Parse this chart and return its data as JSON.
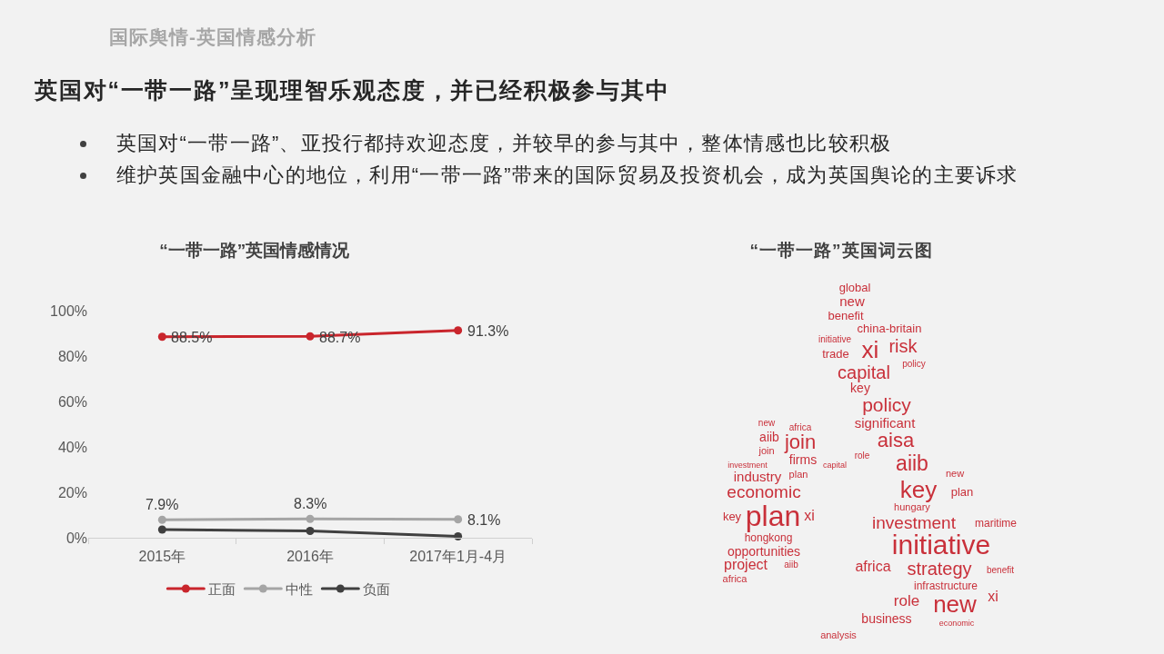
{
  "chart_data": [
    {
      "type": "other",
      "subtitle": "国际舆情-英国情感分析",
      "title": "英国对“一带一路”呈现理智乐观态度，并已经积极参与其中",
      "annotations": [
        "英国对“一带一路”、亚投行都持欢迎态度，并较早的参与其中，整体情感也比较积极",
        "维护英国金融中心的地位，利用“一带一路”带来的国际贸易及投资机会，成为英国舆论的主要诉求"
      ]
    },
    {
      "type": "line",
      "title": "“一带一路”英国情感情况",
      "categories": [
        "2015年",
        "2016年",
        "2017年1月-4月"
      ],
      "series": [
        {
          "name": "正面",
          "color": "#c9252c",
          "values": [
            88.5,
            88.7,
            91.3
          ],
          "value_labels": [
            "88.5%",
            "88.7%",
            "91.3%"
          ]
        },
        {
          "name": "中性",
          "color": "#a5a5a5",
          "values": [
            7.9,
            8.3,
            8.1
          ],
          "value_labels": [
            "7.9%",
            "8.3%",
            "8.1%"
          ]
        },
        {
          "name": "负面",
          "color": "#404040",
          "values": [
            3.6,
            3.0,
            0.6
          ]
        }
      ],
      "ylim": [
        0,
        100
      ],
      "yticks": [
        {
          "value": 0,
          "label": "0%"
        },
        {
          "value": 20,
          "label": "20%"
        },
        {
          "value": 40,
          "label": "40%"
        },
        {
          "value": 60,
          "label": "60%"
        },
        {
          "value": 80,
          "label": "80%"
        },
        {
          "value": 100,
          "label": "100%"
        }
      ],
      "legend": "bottom",
      "marker": "circle",
      "line_style": "solid"
    },
    {
      "type": "other",
      "title": "“一带一路”英国词云图",
      "color": "#c9303a",
      "annotations": [
        "global",
        "new",
        "benefit",
        "china-britain",
        "initiative",
        "xi",
        "risk",
        "trade",
        "capital",
        "policy",
        "key",
        "policy",
        "significant",
        "aisa",
        "role",
        "aiib",
        "new",
        "key",
        "plan",
        "hungary",
        "investment",
        "maritime",
        "initiative",
        "strategy",
        "africa",
        "infrastructure",
        "role",
        "new",
        "xi",
        "business",
        "analysis",
        "economic",
        "benefit",
        "new",
        "africa",
        "aiib",
        "join",
        "join",
        "firms",
        "capital",
        "investment",
        "industry",
        "plan",
        "economic",
        "plan",
        "key",
        "xi",
        "hongkong",
        "opportunities",
        "project",
        "aiib",
        "africa"
      ]
    }
  ]
}
